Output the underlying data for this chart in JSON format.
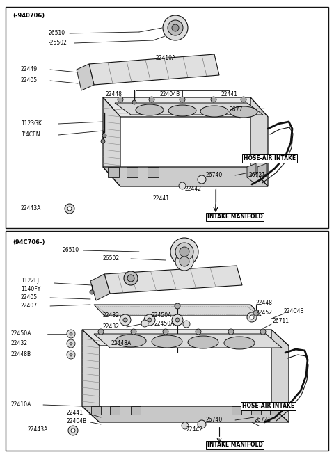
{
  "bg_color": "#f5f5f0",
  "line_color": "#111111",
  "fig_width": 4.8,
  "fig_height": 6.57,
  "dpi": 100,
  "d1": {
    "title": "(-940706)",
    "cap_label1": "26510",
    "cap_label2": "-25502",
    "lbl_22449": "22449",
    "lbl_22405": "22405",
    "lbl_22410A": "22410A",
    "lbl_22448": "22448",
    "lbl_22404B": "22404B",
    "lbl_22441t": "22441",
    "lbl_1123GK": "1123GK",
    "lbl_14CEN": "1'4CEN",
    "lbl_2677": "2677",
    "lbl_hose_ai": "HOSE-AIR INTAKE",
    "lbl_26740": "26740",
    "lbl_26721": "26721",
    "lbl_22442": "22442",
    "lbl_22441b": "22441",
    "lbl_22443A": "22443A",
    "lbl_intake": "INTAKE MANIFOLD"
  },
  "d2": {
    "title": "(94C706-)",
    "cap_label1": "26510",
    "cap_label2": "26502",
    "lbl_1122EJ": "1122EJ",
    "lbl_1140FY": "1140FY",
    "lbl_22405": "22405",
    "lbl_22407": "22407",
    "lbl_22448r": "22448",
    "lbl_22452": "22452",
    "lbl_224C4B": "224C4B",
    "lbl_22432t": "22432",
    "lbl_22450At": "22450A",
    "lbl_26711": "26711",
    "lbl_22450Al": "22450A",
    "lbl_22448A": "22448A",
    "lbl_22432l": "22432",
    "lbl_22448B": "22448B",
    "lbl_hose_ai": "HOSE-AIR INTAKE",
    "lbl_22410A": "22410A",
    "lbl_26740": "26740",
    "lbl_26721": "26721",
    "lbl_22441": "22441",
    "lbl_22442": "22442",
    "lbl_22404B": "22404B",
    "lbl_22443A": "22443A",
    "lbl_intake": "INTAKE MANIFOLD"
  }
}
